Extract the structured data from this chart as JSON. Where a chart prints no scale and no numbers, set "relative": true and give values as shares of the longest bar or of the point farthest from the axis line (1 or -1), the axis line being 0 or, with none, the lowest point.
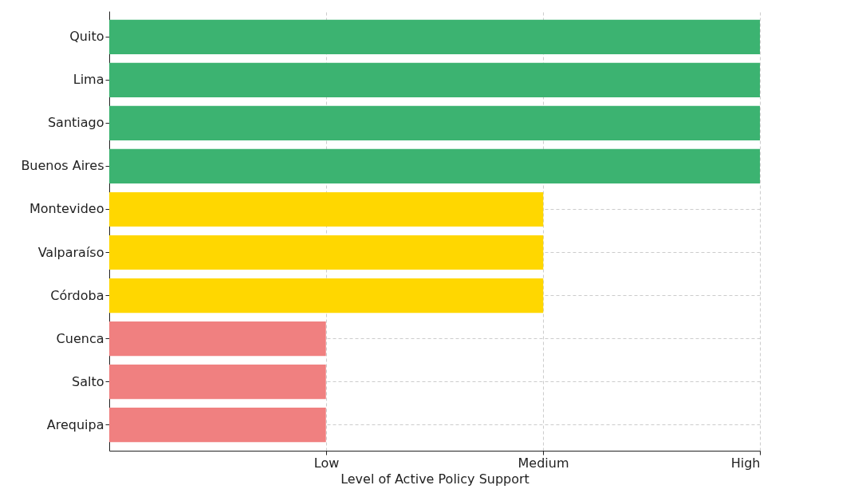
{
  "chart_data": {
    "type": "bar",
    "orientation": "horizontal",
    "relative": true,
    "xlabel": "Level of Active Policy Support",
    "categories": [
      "Quito",
      "Lima",
      "Santiago",
      "Buenos Aires",
      "Montevideo",
      "Valparaíso",
      "Córdoba",
      "Cuenca",
      "Salto",
      "Arequipa"
    ],
    "values": [
      1,
      1,
      1,
      1,
      0.667,
      0.667,
      0.667,
      0.333,
      0.333,
      0.333
    ],
    "colors": [
      "#3cb371",
      "#3cb371",
      "#3cb371",
      "#3cb371",
      "#ffd700",
      "#ffd700",
      "#ffd700",
      "#f08080",
      "#f08080",
      "#f08080"
    ],
    "annotations": [
      "Low",
      "Medium",
      "High"
    ],
    "grid": true
  }
}
